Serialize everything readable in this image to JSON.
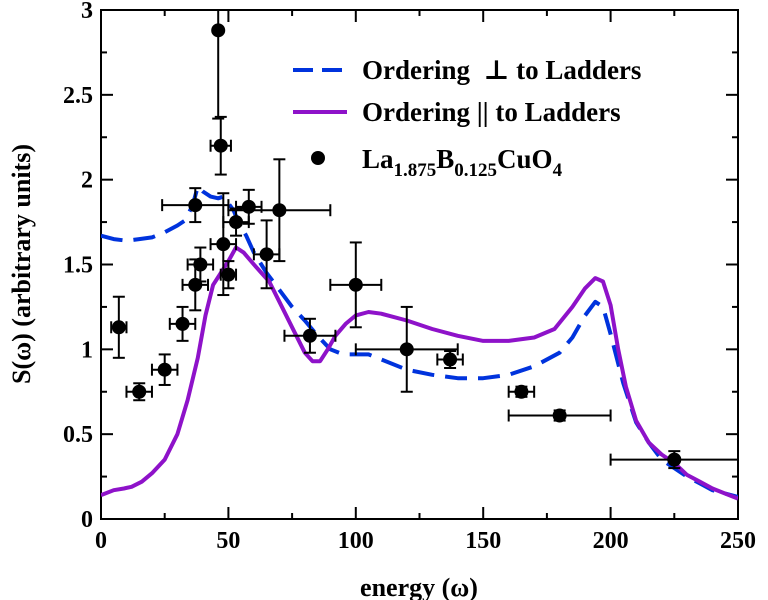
{
  "chart_data": {
    "type": "line",
    "xlabel": "energy (ω)",
    "ylabel": "S(ω) (arbitrary units)",
    "xlim": [
      0,
      250
    ],
    "ylim": [
      0,
      3
    ],
    "xticks": [
      0,
      50,
      100,
      150,
      200,
      250
    ],
    "yticks": [
      0,
      0.5,
      1,
      1.5,
      2,
      2.5,
      3
    ],
    "ytick_labels": [
      "0",
      "0.5",
      "1",
      "1.5",
      "2",
      "2.5",
      "3"
    ],
    "grid": false,
    "legend_position": "top-right",
    "series": [
      {
        "name": "Ordering  ⊥ to Ladders",
        "style": "dashed",
        "color": "#0033dd",
        "points": [
          [
            0,
            1.67
          ],
          [
            5,
            1.65
          ],
          [
            10,
            1.64
          ],
          [
            15,
            1.65
          ],
          [
            20,
            1.66
          ],
          [
            25,
            1.69
          ],
          [
            30,
            1.73
          ],
          [
            33,
            1.76
          ],
          [
            36,
            1.85
          ],
          [
            38,
            1.96
          ],
          [
            40,
            1.93
          ],
          [
            43,
            1.9
          ],
          [
            46,
            1.89
          ],
          [
            48,
            1.9
          ],
          [
            50,
            1.86
          ],
          [
            52,
            1.82
          ],
          [
            54,
            1.75
          ],
          [
            57,
            1.67
          ],
          [
            60,
            1.57
          ],
          [
            65,
            1.45
          ],
          [
            70,
            1.35
          ],
          [
            75,
            1.25
          ],
          [
            80,
            1.17
          ],
          [
            85,
            1.08
          ],
          [
            90,
            1.0
          ],
          [
            95,
            0.97
          ],
          [
            100,
            0.97
          ],
          [
            105,
            0.97
          ],
          [
            110,
            0.94
          ],
          [
            120,
            0.88
          ],
          [
            130,
            0.85
          ],
          [
            140,
            0.83
          ],
          [
            150,
            0.83
          ],
          [
            160,
            0.85
          ],
          [
            170,
            0.9
          ],
          [
            180,
            0.98
          ],
          [
            185,
            1.07
          ],
          [
            190,
            1.2
          ],
          [
            194,
            1.28
          ],
          [
            197,
            1.25
          ],
          [
            200,
            1.09
          ],
          [
            205,
            0.8
          ],
          [
            210,
            0.57
          ],
          [
            215,
            0.45
          ],
          [
            220,
            0.35
          ],
          [
            225,
            0.3
          ],
          [
            230,
            0.25
          ],
          [
            235,
            0.21
          ],
          [
            240,
            0.17
          ],
          [
            245,
            0.15
          ],
          [
            250,
            0.13
          ]
        ]
      },
      {
        "name": "Ordering || to Ladders",
        "style": "solid",
        "color": "#8e12c9",
        "points": [
          [
            0,
            0.14
          ],
          [
            5,
            0.17
          ],
          [
            9,
            0.18
          ],
          [
            12,
            0.19
          ],
          [
            16,
            0.22
          ],
          [
            20,
            0.27
          ],
          [
            25,
            0.35
          ],
          [
            30,
            0.5
          ],
          [
            34,
            0.7
          ],
          [
            38,
            0.95
          ],
          [
            41,
            1.2
          ],
          [
            44,
            1.38
          ],
          [
            47,
            1.45
          ],
          [
            50,
            1.52
          ],
          [
            53,
            1.6
          ],
          [
            56,
            1.57
          ],
          [
            60,
            1.5
          ],
          [
            63,
            1.45
          ],
          [
            66,
            1.4
          ],
          [
            70,
            1.28
          ],
          [
            75,
            1.13
          ],
          [
            80,
            0.98
          ],
          [
            83,
            0.93
          ],
          [
            86,
            0.93
          ],
          [
            89,
            1.0
          ],
          [
            92,
            1.08
          ],
          [
            96,
            1.15
          ],
          [
            100,
            1.2
          ],
          [
            105,
            1.22
          ],
          [
            110,
            1.21
          ],
          [
            120,
            1.17
          ],
          [
            130,
            1.12
          ],
          [
            140,
            1.08
          ],
          [
            150,
            1.05
          ],
          [
            160,
            1.05
          ],
          [
            170,
            1.07
          ],
          [
            178,
            1.12
          ],
          [
            185,
            1.25
          ],
          [
            190,
            1.36
          ],
          [
            194,
            1.42
          ],
          [
            197,
            1.4
          ],
          [
            200,
            1.26
          ],
          [
            203,
            1.0
          ],
          [
            206,
            0.78
          ],
          [
            210,
            0.58
          ],
          [
            215,
            0.45
          ],
          [
            220,
            0.38
          ],
          [
            225,
            0.33
          ],
          [
            230,
            0.26
          ],
          [
            235,
            0.22
          ],
          [
            240,
            0.18
          ],
          [
            245,
            0.15
          ],
          [
            250,
            0.12
          ]
        ]
      },
      {
        "name": "La1.875B0.125CuO4",
        "style": "points",
        "color": "#000000",
        "points": [
          {
            "x": 7,
            "y": 1.13,
            "xerr": 3,
            "yerr": 0.18
          },
          {
            "x": 15,
            "y": 0.75,
            "xerr": 5,
            "yerr": 0.05
          },
          {
            "x": 25,
            "y": 0.88,
            "xerr": 5,
            "yerr": 0.09
          },
          {
            "x": 32,
            "y": 1.15,
            "xerr": 5,
            "yerr": 0.1
          },
          {
            "x": 37,
            "y": 1.38,
            "xerr": 5,
            "yerr": 0.15
          },
          {
            "x": 37,
            "y": 1.85,
            "xerr": 13,
            "yerr": 0.1
          },
          {
            "x": 39,
            "y": 1.5,
            "xerr": 5,
            "yerr": 0.1
          },
          {
            "x": 46,
            "y": 2.88,
            "xerr": 0,
            "yerr": 0.52
          },
          {
            "x": 47,
            "y": 2.2,
            "xerr": 4,
            "yerr": 0.17
          },
          {
            "x": 48,
            "y": 1.62,
            "xerr": 5,
            "yerr": 0.3
          },
          {
            "x": 50,
            "y": 1.44,
            "xerr": 3,
            "yerr": 0.08
          },
          {
            "x": 53,
            "y": 1.75,
            "xerr": 5,
            "yerr": 0.08
          },
          {
            "x": 58,
            "y": 1.84,
            "xerr": 5,
            "yerr": 0.1
          },
          {
            "x": 65,
            "y": 1.56,
            "xerr": 5,
            "yerr": 0.2
          },
          {
            "x": 70,
            "y": 1.82,
            "xerr": 20,
            "yerr": 0.3
          },
          {
            "x": 82,
            "y": 1.08,
            "xerr": 10,
            "yerr": 0.1
          },
          {
            "x": 100,
            "y": 1.38,
            "xerr": 10,
            "yerr": 0.25
          },
          {
            "x": 120,
            "y": 1.0,
            "xerr": 20,
            "yerr": 0.25
          },
          {
            "x": 137,
            "y": 0.94,
            "xerr": 5,
            "yerr": 0.05
          },
          {
            "x": 165,
            "y": 0.75,
            "xerr": 5,
            "yerr": 0.03
          },
          {
            "x": 180,
            "y": 0.61,
            "xerr": 20,
            "yerr": 0.03
          },
          {
            "x": 225,
            "y": 0.35,
            "xerr": 25,
            "yerr": 0.05
          }
        ]
      }
    ],
    "legend_items": [
      {
        "pre": "Ordering  ⊥ to Ladders",
        "style": "dashed",
        "color": "#0033dd"
      },
      {
        "pre": "Ordering || to Ladders",
        "style": "solid",
        "color": "#8e12c9"
      },
      {
        "parts": [
          "La",
          "1.875",
          "B",
          "0.125",
          "CuO",
          "4"
        ],
        "style": "points",
        "color": "#000000"
      }
    ]
  }
}
